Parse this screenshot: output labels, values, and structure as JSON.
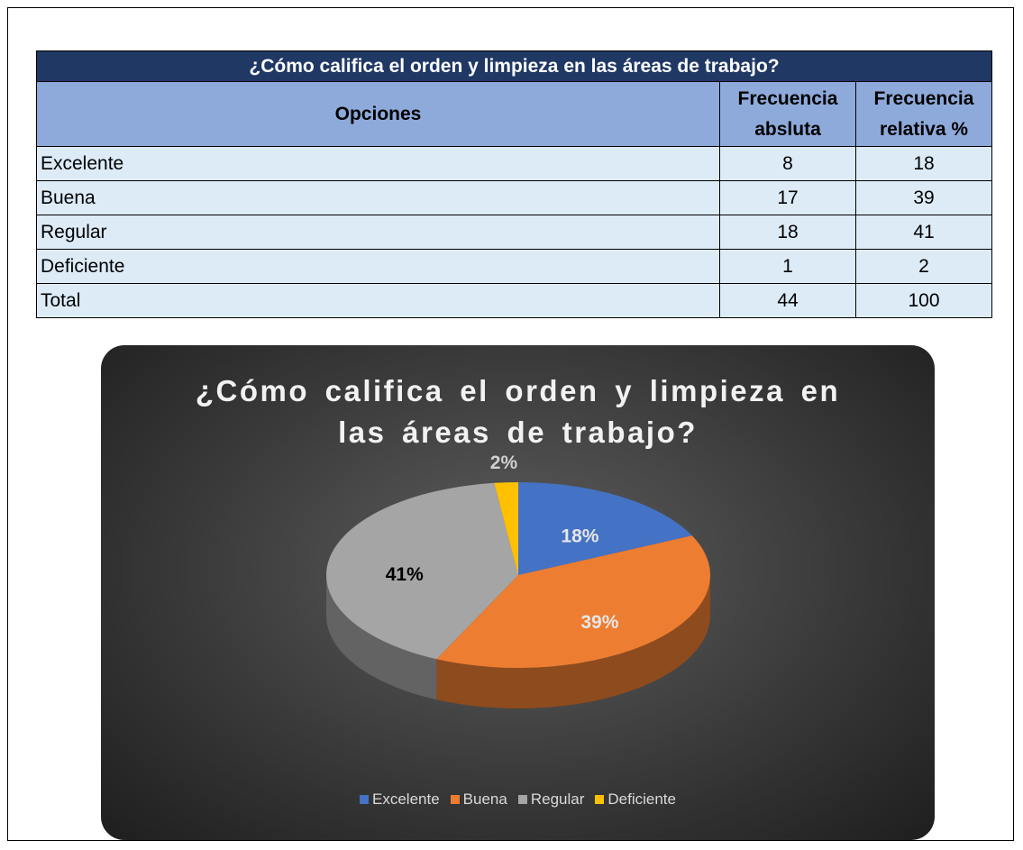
{
  "table": {
    "title": "¿Cómo califica el orden y limpieza en las áreas de trabajo?",
    "header": [
      "Opciones",
      "Frecuencia absluta",
      "Frecuencia relativa %"
    ],
    "rows": [
      [
        "Excelente",
        8,
        18
      ],
      [
        "Buena",
        17,
        39
      ],
      [
        "Regular",
        18,
        41
      ],
      [
        "Deficiente",
        1,
        2
      ],
      [
        "Total",
        44,
        100
      ]
    ]
  },
  "chart_data": {
    "type": "pie",
    "title": "¿Cómo califica el orden y limpieza en las áreas de trabajo?",
    "categories": [
      "Excelente",
      "Buena",
      "Regular",
      "Deficiente"
    ],
    "values": [
      18,
      39,
      41,
      2
    ],
    "value_labels": [
      "18%",
      "39%",
      "41%",
      "2%"
    ],
    "colors": [
      "#4472c4",
      "#ed7d31",
      "#a5a5a5",
      "#ffc000"
    ],
    "label_colors": [
      "#e6e6e6",
      "#e6e6e6",
      "#000000",
      "#d0d0d0"
    ],
    "legend": "bottom"
  }
}
